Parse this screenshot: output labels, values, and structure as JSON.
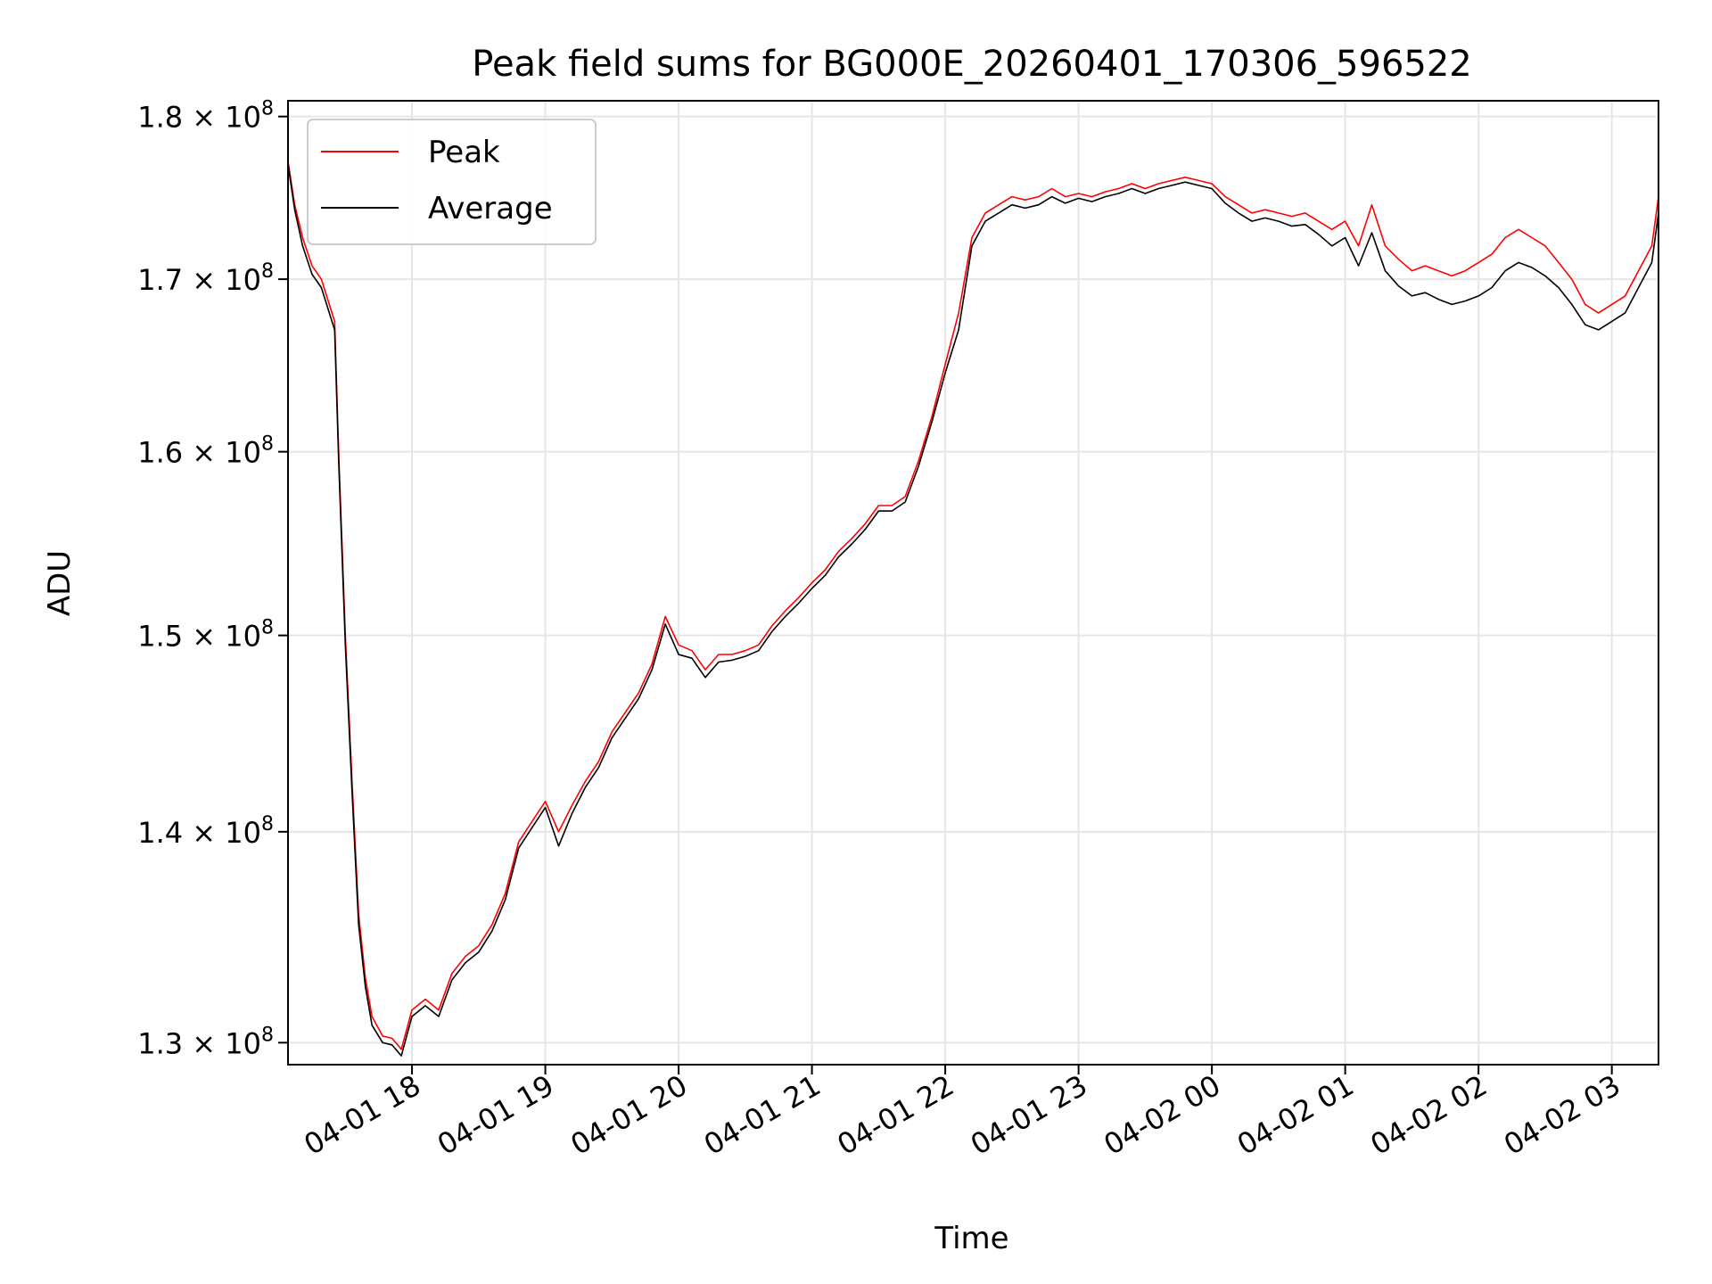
{
  "chart_data": {
    "type": "line",
    "title": "Peak field sums for BG000E_20260401_170306_596522",
    "xlabel": "Time",
    "ylabel": "ADU",
    "xlim": [
      17.07,
      27.35
    ],
    "ylim": [
      129000000,
      181000000
    ],
    "y_scale": "log",
    "grid": true,
    "legend_position": "upper-left",
    "x_ticks": [
      {
        "value": 18,
        "label": "04-01 18"
      },
      {
        "value": 19,
        "label": "04-01 19"
      },
      {
        "value": 20,
        "label": "04-01 20"
      },
      {
        "value": 21,
        "label": "04-01 21"
      },
      {
        "value": 22,
        "label": "04-01 22"
      },
      {
        "value": 23,
        "label": "04-01 23"
      },
      {
        "value": 24,
        "label": "04-02 00"
      },
      {
        "value": 25,
        "label": "04-02 01"
      },
      {
        "value": 26,
        "label": "04-02 02"
      },
      {
        "value": 27,
        "label": "04-02 03"
      }
    ],
    "y_ticks": [
      {
        "value": 130000000,
        "mantissa": "1.3",
        "base": "10",
        "exponent": "8"
      },
      {
        "value": 140000000,
        "mantissa": "1.4",
        "base": "10",
        "exponent": "8"
      },
      {
        "value": 150000000,
        "mantissa": "1.5",
        "base": "10",
        "exponent": "8"
      },
      {
        "value": 160000000,
        "mantissa": "1.6",
        "base": "10",
        "exponent": "8"
      },
      {
        "value": 170000000,
        "mantissa": "1.7",
        "base": "10",
        "exponent": "8"
      },
      {
        "value": 180000000,
        "mantissa": "1.8",
        "base": "10",
        "exponent": "8"
      }
    ],
    "x_units": "hours since 2026-04-01 00:00",
    "series": [
      {
        "name": "Peak",
        "color": "#ff0000",
        "points": [
          [
            17.07,
            177.2
          ],
          [
            17.12,
            174.5
          ],
          [
            17.18,
            172.5
          ],
          [
            17.25,
            170.8
          ],
          [
            17.32,
            170.0
          ],
          [
            17.38,
            168.5
          ],
          [
            17.42,
            167.5
          ],
          [
            17.45,
            160.0
          ],
          [
            17.5,
            150.0
          ],
          [
            17.55,
            142.5
          ],
          [
            17.6,
            136.0
          ],
          [
            17.65,
            133.0
          ],
          [
            17.7,
            131.2
          ],
          [
            17.78,
            130.3
          ],
          [
            17.85,
            130.2
          ],
          [
            17.92,
            129.7
          ],
          [
            18.0,
            131.5
          ],
          [
            18.1,
            132.0
          ],
          [
            18.2,
            131.5
          ],
          [
            18.3,
            133.2
          ],
          [
            18.4,
            134.0
          ],
          [
            18.5,
            134.5
          ],
          [
            18.6,
            135.5
          ],
          [
            18.7,
            137.0
          ],
          [
            18.8,
            139.5
          ],
          [
            18.9,
            140.5
          ],
          [
            19.0,
            141.5
          ],
          [
            19.1,
            140.0
          ],
          [
            19.2,
            141.3
          ],
          [
            19.3,
            142.5
          ],
          [
            19.4,
            143.5
          ],
          [
            19.5,
            145.0
          ],
          [
            19.6,
            146.0
          ],
          [
            19.7,
            147.0
          ],
          [
            19.8,
            148.5
          ],
          [
            19.9,
            151.0
          ],
          [
            20.0,
            149.5
          ],
          [
            20.1,
            149.2
          ],
          [
            20.2,
            148.2
          ],
          [
            20.3,
            149.0
          ],
          [
            20.4,
            149.0
          ],
          [
            20.5,
            149.2
          ],
          [
            20.6,
            149.5
          ],
          [
            20.7,
            150.5
          ],
          [
            20.8,
            151.3
          ],
          [
            20.9,
            152.0
          ],
          [
            21.0,
            152.8
          ],
          [
            21.1,
            153.5
          ],
          [
            21.2,
            154.5
          ],
          [
            21.3,
            155.2
          ],
          [
            21.4,
            156.0
          ],
          [
            21.5,
            157.0
          ],
          [
            21.6,
            157.0
          ],
          [
            21.7,
            157.5
          ],
          [
            21.8,
            159.5
          ],
          [
            21.9,
            162.0
          ],
          [
            22.0,
            165.0
          ],
          [
            22.1,
            168.0
          ],
          [
            22.2,
            172.5
          ],
          [
            22.3,
            174.0
          ],
          [
            22.4,
            174.5
          ],
          [
            22.5,
            175.0
          ],
          [
            22.6,
            174.8
          ],
          [
            22.7,
            175.0
          ],
          [
            22.8,
            175.5
          ],
          [
            22.9,
            175.0
          ],
          [
            23.0,
            175.2
          ],
          [
            23.1,
            175.0
          ],
          [
            23.2,
            175.3
          ],
          [
            23.3,
            175.5
          ],
          [
            23.4,
            175.8
          ],
          [
            23.5,
            175.5
          ],
          [
            23.6,
            175.8
          ],
          [
            23.7,
            176.0
          ],
          [
            23.8,
            176.2
          ],
          [
            23.9,
            176.0
          ],
          [
            24.0,
            175.8
          ],
          [
            24.1,
            175.0
          ],
          [
            24.2,
            174.5
          ],
          [
            24.3,
            174.0
          ],
          [
            24.4,
            174.2
          ],
          [
            24.5,
            174.0
          ],
          [
            24.6,
            173.8
          ],
          [
            24.7,
            174.0
          ],
          [
            24.8,
            173.5
          ],
          [
            24.9,
            173.0
          ],
          [
            25.0,
            173.5
          ],
          [
            25.1,
            172.0
          ],
          [
            25.2,
            174.5
          ],
          [
            25.3,
            172.0
          ],
          [
            25.4,
            171.2
          ],
          [
            25.5,
            170.5
          ],
          [
            25.6,
            170.8
          ],
          [
            25.7,
            170.5
          ],
          [
            25.8,
            170.2
          ],
          [
            25.9,
            170.5
          ],
          [
            26.0,
            171.0
          ],
          [
            26.1,
            171.5
          ],
          [
            26.2,
            172.5
          ],
          [
            26.3,
            173.0
          ],
          [
            26.4,
            172.5
          ],
          [
            26.5,
            172.0
          ],
          [
            26.6,
            171.0
          ],
          [
            26.7,
            170.0
          ],
          [
            26.8,
            168.5
          ],
          [
            26.9,
            168.0
          ],
          [
            27.0,
            168.5
          ],
          [
            27.1,
            169.0
          ],
          [
            27.2,
            170.5
          ],
          [
            27.3,
            172.0
          ],
          [
            27.35,
            175.0
          ]
        ]
      },
      {
        "name": "Average",
        "color": "#000000",
        "points": [
          [
            17.07,
            177.0
          ],
          [
            17.12,
            174.2
          ],
          [
            17.18,
            172.0
          ],
          [
            17.25,
            170.3
          ],
          [
            17.32,
            169.5
          ],
          [
            17.38,
            168.0
          ],
          [
            17.42,
            167.0
          ],
          [
            17.45,
            159.5
          ],
          [
            17.5,
            149.5
          ],
          [
            17.55,
            142.0
          ],
          [
            17.6,
            135.5
          ],
          [
            17.65,
            132.6
          ],
          [
            17.7,
            130.8
          ],
          [
            17.78,
            130.0
          ],
          [
            17.85,
            129.9
          ],
          [
            17.92,
            129.4
          ],
          [
            18.0,
            131.2
          ],
          [
            18.1,
            131.7
          ],
          [
            18.2,
            131.2
          ],
          [
            18.3,
            132.9
          ],
          [
            18.4,
            133.7
          ],
          [
            18.5,
            134.2
          ],
          [
            18.6,
            135.2
          ],
          [
            18.7,
            136.7
          ],
          [
            18.8,
            139.2
          ],
          [
            18.9,
            140.2
          ],
          [
            19.0,
            141.2
          ],
          [
            19.1,
            139.3
          ],
          [
            19.2,
            140.9
          ],
          [
            19.3,
            142.2
          ],
          [
            19.4,
            143.2
          ],
          [
            19.5,
            144.7
          ],
          [
            19.6,
            145.7
          ],
          [
            19.7,
            146.7
          ],
          [
            19.8,
            148.2
          ],
          [
            19.9,
            150.6
          ],
          [
            20.0,
            149.0
          ],
          [
            20.1,
            148.8
          ],
          [
            20.2,
            147.8
          ],
          [
            20.3,
            148.6
          ],
          [
            20.4,
            148.7
          ],
          [
            20.5,
            148.9
          ],
          [
            20.6,
            149.2
          ],
          [
            20.7,
            150.2
          ],
          [
            20.8,
            151.0
          ],
          [
            20.9,
            151.7
          ],
          [
            21.0,
            152.5
          ],
          [
            21.1,
            153.2
          ],
          [
            21.2,
            154.2
          ],
          [
            21.3,
            154.9
          ],
          [
            21.4,
            155.7
          ],
          [
            21.5,
            156.7
          ],
          [
            21.6,
            156.7
          ],
          [
            21.7,
            157.2
          ],
          [
            21.8,
            159.2
          ],
          [
            21.9,
            161.7
          ],
          [
            22.0,
            164.5
          ],
          [
            22.1,
            167.0
          ],
          [
            22.2,
            172.0
          ],
          [
            22.3,
            173.5
          ],
          [
            22.4,
            174.0
          ],
          [
            22.5,
            174.5
          ],
          [
            22.6,
            174.3
          ],
          [
            22.7,
            174.5
          ],
          [
            22.8,
            175.0
          ],
          [
            22.9,
            174.6
          ],
          [
            23.0,
            174.9
          ],
          [
            23.1,
            174.7
          ],
          [
            23.2,
            175.0
          ],
          [
            23.3,
            175.2
          ],
          [
            23.4,
            175.5
          ],
          [
            23.5,
            175.2
          ],
          [
            23.6,
            175.5
          ],
          [
            23.7,
            175.7
          ],
          [
            23.8,
            175.9
          ],
          [
            23.9,
            175.7
          ],
          [
            24.0,
            175.5
          ],
          [
            24.1,
            174.6
          ],
          [
            24.2,
            174.0
          ],
          [
            24.3,
            173.5
          ],
          [
            24.4,
            173.7
          ],
          [
            24.5,
            173.5
          ],
          [
            24.6,
            173.2
          ],
          [
            24.7,
            173.3
          ],
          [
            24.8,
            172.7
          ],
          [
            24.9,
            172.0
          ],
          [
            25.0,
            172.5
          ],
          [
            25.1,
            170.8
          ],
          [
            25.2,
            172.8
          ],
          [
            25.3,
            170.5
          ],
          [
            25.4,
            169.6
          ],
          [
            25.5,
            169.0
          ],
          [
            25.6,
            169.2
          ],
          [
            25.7,
            168.8
          ],
          [
            25.8,
            168.5
          ],
          [
            25.9,
            168.7
          ],
          [
            26.0,
            169.0
          ],
          [
            26.1,
            169.5
          ],
          [
            26.2,
            170.5
          ],
          [
            26.3,
            171.0
          ],
          [
            26.4,
            170.7
          ],
          [
            26.5,
            170.2
          ],
          [
            26.6,
            169.5
          ],
          [
            26.7,
            168.5
          ],
          [
            26.8,
            167.3
          ],
          [
            26.9,
            167.0
          ],
          [
            27.0,
            167.5
          ],
          [
            27.1,
            168.0
          ],
          [
            27.2,
            169.5
          ],
          [
            27.3,
            171.0
          ],
          [
            27.35,
            174.0
          ]
        ]
      }
    ]
  }
}
